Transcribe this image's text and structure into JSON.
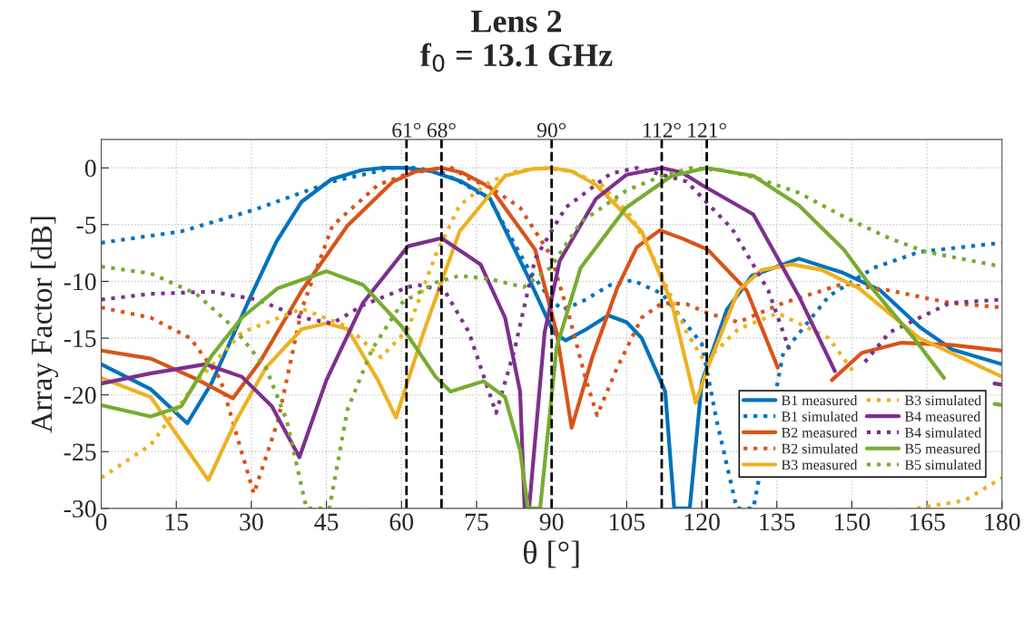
{
  "chart_data": {
    "type": "line",
    "title": "Lens 2\nf$_{0}$ = 13.1 GHz",
    "xlabel": "θ [°]",
    "ylabel": "Array Factor [dB]",
    "xlim": [
      0,
      180
    ],
    "xticks": [
      0,
      15,
      30,
      45,
      60,
      75,
      90,
      105,
      120,
      135,
      150,
      165,
      180
    ],
    "ylim": [
      -30,
      2.5
    ],
    "yticks": [
      -30,
      -25,
      -20,
      -15,
      -10,
      -5,
      0
    ],
    "grid": true,
    "legend": "bottom right",
    "ref_lines": [
      {
        "axis": "x",
        "value": 61,
        "label": "61°",
        "color": "#000000",
        "line_style": "dashed"
      },
      {
        "axis": "x",
        "value": 68,
        "label": "68°",
        "color": "#000000",
        "line_style": "dashed"
      },
      {
        "axis": "x",
        "value": 90,
        "label": "90°",
        "color": "#000000",
        "line_style": "dashed"
      },
      {
        "axis": "x",
        "value": 112,
        "label": "112°",
        "color": "#000000",
        "line_style": "dashed"
      },
      {
        "axis": "x",
        "value": 121,
        "label": "121°",
        "color": "#000000",
        "line_style": "dashed"
      }
    ],
    "series": [
      {
        "name": "B1 measured",
        "color": "#0072bd",
        "line_style": "solid",
        "x": [
          0,
          9.9,
          17.2,
          22,
          29.9,
          35,
          40,
          46,
          52,
          56,
          61,
          66,
          72,
          77.7,
          85.5,
          90.4,
          92.8,
          97,
          101.3,
          105,
          108,
          112.7,
          114.5,
          117.6,
          120,
          125,
          130,
          139.4,
          148,
          155.7,
          163.5,
          170,
          180
        ],
        "values": [
          -17.3,
          -19.5,
          -22.5,
          -19.0,
          -11.3,
          -6.5,
          -3.0,
          -1.0,
          -0.2,
          0,
          0,
          -0.3,
          -1.2,
          -2.7,
          -9.8,
          -14.5,
          -15.2,
          -14.2,
          -13.0,
          -13.6,
          -15.0,
          -19.7,
          -30,
          -30,
          -18.9,
          -12.5,
          -9.5,
          -8.0,
          -9.2,
          -10.8,
          -14.0,
          -16.0,
          -17.3
        ]
      },
      {
        "name": "B1 simulated",
        "color": "#0072bd",
        "line_style": "dotted",
        "x": [
          0,
          16,
          30.5,
          46.2,
          58.3,
          63,
          68,
          72,
          77.7,
          85.5,
          89.8,
          92.2,
          96,
          101.8,
          106.2,
          112.1,
          120,
          123,
          127,
          130.3,
          136.3,
          145.4,
          154.4,
          163.5,
          180
        ],
        "values": [
          -6.6,
          -5.6,
          -3.7,
          -1.2,
          0,
          0,
          -0.4,
          -1.3,
          -2.8,
          -9.0,
          -11.6,
          -12.5,
          -11.8,
          -10.3,
          -9.9,
          -11.1,
          -15.5,
          -22.3,
          -30,
          -30,
          -16.3,
          -11.3,
          -8.8,
          -7.4,
          -6.6
        ]
      },
      {
        "name": "B2 measured",
        "color": "#d95319",
        "line_style": "solid",
        "x": [
          0,
          9.9,
          19,
          26.3,
          31.7,
          40.1,
          49.2,
          58.3,
          63,
          68,
          72,
          77.7,
          86.7,
          91,
          94,
          98.2,
          103.1,
          107,
          111.6,
          116,
          121.2,
          129,
          135.2,
          141,
          146,
          152,
          159.9,
          170,
          180
        ],
        "values": [
          -16.1,
          -16.8,
          -18.6,
          -20.3,
          -17.1,
          -10.8,
          -5.1,
          -1.2,
          -0.3,
          0,
          -0.4,
          -1.7,
          -7.2,
          -14.5,
          -22.9,
          -16.6,
          -10.6,
          -7.0,
          -5.5,
          -6.2,
          -7.2,
          -10.8,
          -17.6,
          null,
          -18.7,
          -16.3,
          -15.4,
          -15.6,
          -16.1
        ]
      },
      {
        "name": "B2 simulated",
        "color": "#d95319",
        "line_style": "dotted",
        "x": [
          0,
          9.9,
          17.8,
          23.8,
          30.5,
          35.3,
          40.1,
          46.2,
          55.3,
          62,
          70,
          73.4,
          78,
          83.7,
          89.8,
          93.4,
          97,
          99.1,
          103.1,
          108,
          112.1,
          117,
          121.2,
          127.3,
          136.3,
          148.4,
          157.5,
          169.6,
          180
        ],
        "values": [
          -12.3,
          -13.2,
          -15.0,
          -18.6,
          -28.7,
          -22.3,
          -12.4,
          -5.1,
          -1.5,
          -0.4,
          0,
          -0.9,
          -1.8,
          -3.5,
          -7.7,
          -12.9,
          -18.9,
          -21.8,
          -17.6,
          -13.2,
          -11.9,
          -12.0,
          -12.8,
          -13.6,
          -11.9,
          -10.2,
          -10.8,
          -11.9,
          -12.3
        ]
      },
      {
        "name": "B3 measured",
        "color": "#edb120",
        "line_style": "solid",
        "x": [
          0,
          9.9,
          21.4,
          26.9,
          32.9,
          40.1,
          45,
          49.2,
          55.3,
          58.9,
          64.4,
          71.6,
          80.7,
          86,
          90,
          94,
          98.9,
          108,
          114,
          118.8,
          121.2,
          127.3,
          132,
          138.1,
          144,
          151.4,
          163.5,
          180
        ],
        "values": [
          -18.5,
          -20.2,
          -27.5,
          -22.3,
          -17.6,
          -14.2,
          -13.7,
          -14.2,
          -18.7,
          -22.0,
          -14.5,
          -5.6,
          -0.7,
          -0.1,
          0,
          -0.3,
          -1.5,
          -5.6,
          -11.9,
          -20.7,
          -17.6,
          -10.8,
          -9.0,
          -8.5,
          -9.0,
          -10.6,
          -15.0,
          -18.4
        ]
      },
      {
        "name": "B3 simulated",
        "color": "#edb120",
        "line_style": "dotted",
        "x": [
          0,
          9.9,
          19,
          28.1,
          40.1,
          49.2,
          55.9,
          61.3,
          66.8,
          71.6,
          77.7,
          83,
          88,
          94,
          100,
          106,
          111,
          117,
          120.6,
          127.3,
          135.2,
          145.4,
          150.2,
          156,
          163,
          172.6,
          180
        ],
        "values": [
          -27.3,
          -24.4,
          -18.9,
          -14.5,
          -12.4,
          -14.0,
          -16.7,
          -14.2,
          -7.7,
          -3.3,
          -1.2,
          -0.3,
          0,
          -0.3,
          -1.5,
          -4.3,
          -8.5,
          -14.5,
          -17.1,
          -14.2,
          -12.8,
          -15.0,
          -17.9,
          null,
          -30,
          -29.3,
          -27.3
        ]
      },
      {
        "name": "B4 measured",
        "color": "#7e2f8e",
        "line_style": "solid",
        "x": [
          0,
          9.9,
          20.8,
          28.1,
          34.1,
          39.6,
          45,
          52.3,
          61.3,
          68,
          75.8,
          80.7,
          83.7,
          84.6,
          85.5,
          88.6,
          91.6,
          98.9,
          105,
          112,
          116,
          120,
          130.3,
          139.4,
          146.6,
          160,
          178.5,
          180
        ],
        "values": [
          -19.0,
          -18.1,
          -17.3,
          -18.4,
          -21.0,
          -25.5,
          -18.7,
          -11.9,
          -6.9,
          -6.2,
          -8.5,
          -13.2,
          -19.7,
          -30,
          -30,
          -14.5,
          -8.2,
          -2.7,
          -0.6,
          0,
          -0.4,
          -1.5,
          -4.1,
          -11.3,
          -17.9,
          null,
          -19.0,
          -19.1
        ]
      },
      {
        "name": "B4 simulated",
        "color": "#7e2f8e",
        "line_style": "dotted",
        "x": [
          0,
          9.9,
          22,
          31.1,
          40.1,
          46.2,
          52.3,
          61.3,
          63.2,
          68.6,
          73.5,
          78.9,
          82.6,
          86.7,
          92.8,
          101.8,
          107,
          117,
          126.1,
          133.3,
          137.5,
          145,
          152.6,
          157.5,
          169.6,
          180
        ],
        "values": [
          -11.6,
          -11.1,
          -10.9,
          -11.6,
          -13.2,
          -13.7,
          -12.1,
          -10.5,
          -10.3,
          -10.8,
          -14.5,
          -21.6,
          -16.0,
          -8.0,
          -3.5,
          -0.5,
          0,
          -1.2,
          -5.4,
          -10.8,
          -16.0,
          null,
          -17.1,
          -14.5,
          -11.9,
          -11.6
        ]
      },
      {
        "name": "B5 measured",
        "color": "#77ac30",
        "line_style": "solid",
        "x": [
          0,
          9.9,
          16,
          22,
          28.1,
          35.3,
          45,
          52.3,
          60.1,
          66.8,
          69.8,
          76.4,
          80.7,
          83.7,
          85.3,
          87.7,
          91,
          95.8,
          104.9,
          114,
          121,
          130.3,
          139.4,
          148.4,
          154.4,
          162.4,
          168.4,
          175,
          178.5,
          180
        ],
        "values": [
          -20.9,
          -21.9,
          -21.0,
          -16.6,
          -13.2,
          -10.6,
          -9.1,
          -10.3,
          -14.0,
          -18.4,
          -19.7,
          -18.8,
          -20.2,
          -24.9,
          -30,
          -30,
          -15.8,
          -8.8,
          -3.5,
          -0.7,
          0,
          -0.7,
          -3.3,
          -7.2,
          -10.8,
          -15.0,
          -18.5,
          null,
          -20.8,
          -20.9
        ]
      },
      {
        "name": "B5 simulated",
        "color": "#77ac30",
        "line_style": "dotted",
        "x": [
          0,
          9.9,
          19,
          26.3,
          32.9,
          37.1,
          41,
          45.6,
          49.2,
          54.1,
          60.1,
          66.8,
          71.6,
          77.7,
          84.4,
          89.8,
          95.8,
          104.9,
          112.1,
          118,
          124,
          130.3,
          139.4,
          148.4,
          157.5,
          164.8,
          180
        ],
        "values": [
          -8.7,
          -9.3,
          -11.1,
          -14.0,
          -17.6,
          -22.3,
          -30,
          -30,
          -21.3,
          -16.0,
          -11.9,
          -10.1,
          -9.5,
          -9.8,
          -10.5,
          -8.8,
          -4.8,
          -2.0,
          -0.7,
          0,
          -0.2,
          -0.8,
          -2.2,
          -4.3,
          -6.2,
          -7.4,
          -8.7
        ]
      }
    ]
  }
}
